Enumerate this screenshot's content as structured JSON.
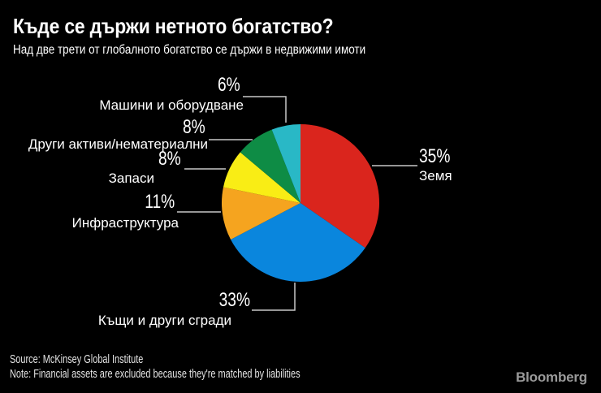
{
  "chart_data": {
    "type": "pie",
    "title": "Къде се държи нетното богатство?",
    "subtitle": "Над две трети от глобалното богатство се държи в недвижими имоти",
    "unit": "%",
    "legend_position": "callout-labels",
    "start_angle_deg": 0,
    "direction": "clockwise",
    "background_color": "#000000",
    "callout_line_color": "#c8c8c8",
    "slices": [
      {
        "label": "Земя",
        "value": 35,
        "pct": "35%",
        "color": "#da251d"
      },
      {
        "label": "Къщи и други сгради",
        "value": 33,
        "pct": "33%",
        "color": "#0a86dd"
      },
      {
        "label": "Инфраструктура",
        "value": 11,
        "pct": "11%",
        "color": "#f5a41f"
      },
      {
        "label": "Запаси",
        "value": 8,
        "pct": "8%",
        "color": "#f9ed15"
      },
      {
        "label": "Други активи/нематериални",
        "value": 8,
        "pct": "8%",
        "color": "#0e8c45"
      },
      {
        "label": "Машини и оборудване",
        "value": 6,
        "pct": "6%",
        "color": "#29b8c6"
      }
    ]
  },
  "footer": {
    "source": "Source: McKinsey Global Institute",
    "note": "Note: Financial assets are excluded because they're matched by liabilities",
    "brand": "Bloomberg"
  }
}
